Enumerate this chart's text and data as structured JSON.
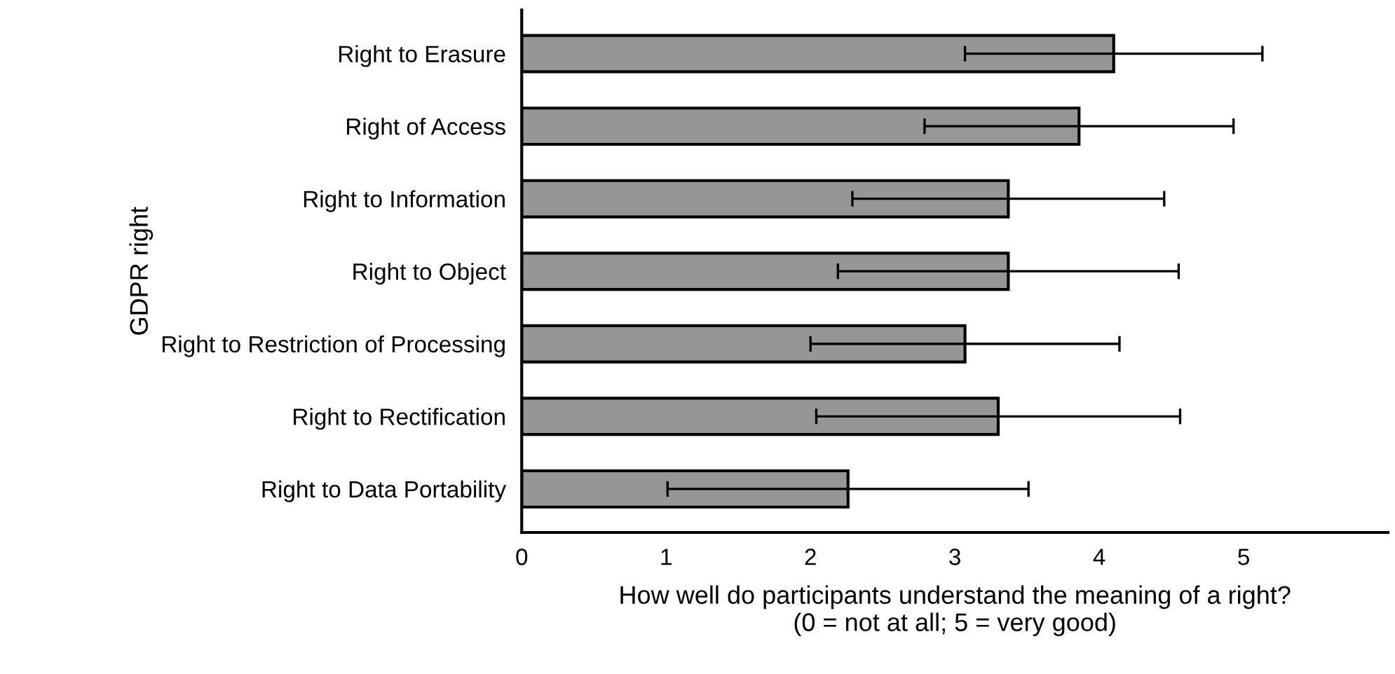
{
  "chart_data": {
    "type": "bar",
    "orientation": "horizontal",
    "xlabel": "How well do participants understand the meaning of a right?\n(0 = not at all; 5 = very good)",
    "ylabel": "GDPR right",
    "categories": [
      "Right to Erasure",
      "Right of Access",
      "Right to Information",
      "Right to Object",
      "Right to Restriction of Processing",
      "Right to Rectification",
      "Right to Data Portability"
    ],
    "values": [
      4.1,
      3.86,
      3.37,
      3.37,
      3.07,
      3.3,
      2.26
    ],
    "errors": [
      1.03,
      1.07,
      1.08,
      1.18,
      1.07,
      1.26,
      1.25
    ],
    "color": "#969696",
    "xlim": [
      0,
      6
    ],
    "xticks": [
      0,
      1,
      2,
      3,
      4,
      5
    ],
    "grid": false,
    "legend": false
  }
}
